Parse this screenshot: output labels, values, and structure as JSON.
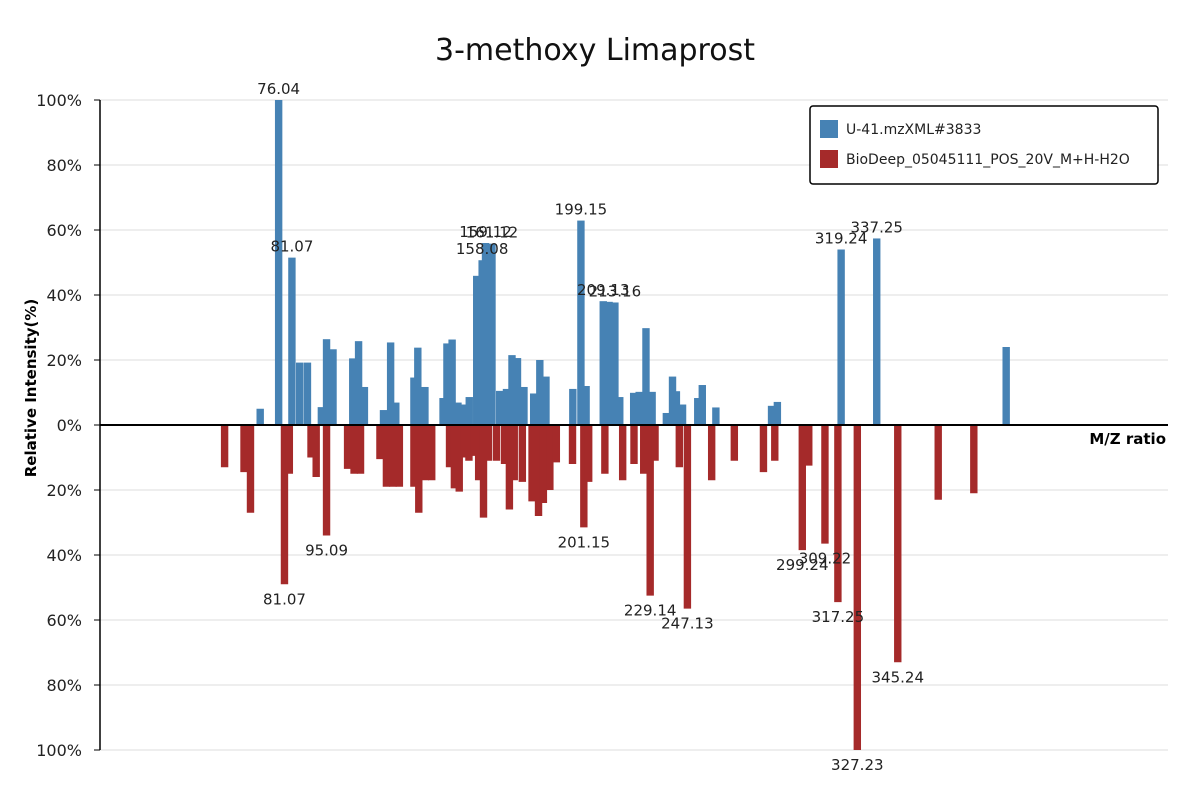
{
  "chart_data": {
    "type": "bar",
    "title": "3-methoxy Limaprost",
    "xlabel": "M/Z ratio",
    "ylabel": "Relative Intensity(%)",
    "ylim": [
      -100,
      100
    ],
    "xlim": [
      40,
      370
    ],
    "grid": true,
    "legend_position": "top-right",
    "y_tick_labels": [
      "100%",
      "80%",
      "60%",
      "40%",
      "20%",
      "0%",
      "20%",
      "40%",
      "60%",
      "80%",
      "100%"
    ],
    "series": [
      {
        "name": "U-41.mzXML#3833",
        "color": "#4682b4",
        "points": [
          [
            83.3,
            0
          ],
          [
            89.5,
            5
          ],
          [
            95.2,
            100
          ],
          [
            99.3,
            51.5
          ],
          [
            101.7,
            19.2
          ],
          [
            104.1,
            19.2
          ],
          [
            108.4,
            5.5
          ],
          [
            110.0,
            26.4
          ],
          [
            112.0,
            23.3
          ],
          [
            118.1,
            20.5
          ],
          [
            119.9,
            25.8
          ],
          [
            121.7,
            11.7
          ],
          [
            127.6,
            4.6
          ],
          [
            129.8,
            25.4
          ],
          [
            131.4,
            6.9
          ],
          [
            137.0,
            14.6
          ],
          [
            138.2,
            23.8
          ],
          [
            140.4,
            11.7
          ],
          [
            146.0,
            8.3
          ],
          [
            147.2,
            25.1
          ],
          [
            148.8,
            26.3
          ],
          [
            150.6,
            6.9
          ],
          [
            152.5,
            6.3
          ],
          [
            154.1,
            8.6
          ],
          [
            156.4,
            45.9
          ],
          [
            158.08,
            50.7
          ],
          [
            159.12,
            56.0
          ],
          [
            161.12,
            55.8
          ],
          [
            163.5,
            10.5
          ],
          [
            165.6,
            11.1
          ],
          [
            167.3,
            21.5
          ],
          [
            169.0,
            20.6
          ],
          [
            171.0,
            11.7
          ],
          [
            174.0,
            9.7
          ],
          [
            175.9,
            20.0
          ],
          [
            177.8,
            14.9
          ],
          [
            186.1,
            11.1
          ],
          [
            188.6,
            62.9
          ],
          [
            190.2,
            12.0
          ],
          [
            195.5,
            38.1
          ],
          [
            197.3,
            37.9
          ],
          [
            199.1,
            37.7
          ],
          [
            200.6,
            8.6
          ],
          [
            204.9,
            9.9
          ],
          [
            206.6,
            10.2
          ],
          [
            208.7,
            29.8
          ],
          [
            210.6,
            10.2
          ],
          [
            215.0,
            3.7
          ],
          [
            216.9,
            14.9
          ],
          [
            218.1,
            10.4
          ],
          [
            220.0,
            6.3
          ],
          [
            224.7,
            8.3
          ],
          [
            226.1,
            12.3
          ],
          [
            230.3,
            5.4
          ],
          [
            237.8,
            0
          ],
          [
            247.5,
            5.9
          ],
          [
            249.3,
            7.1
          ],
          [
            256.5,
            0
          ],
          [
            269.0,
            54.0
          ],
          [
            280.0,
            57.4
          ],
          [
            320.0,
            24.0
          ],
          [
            330.0,
            0
          ]
        ],
        "labels": [
          {
            "text": "76.04",
            "x": 95.2,
            "y": 100
          },
          {
            "text": "81.07",
            "x": 99.3,
            "y": 51.5
          },
          {
            "text": "161.12",
            "x": 161.12,
            "y": 55.8
          },
          {
            "text": "159.12",
            "x": 159.12,
            "y": 56.0
          },
          {
            "text": "158.08",
            "x": 158.08,
            "y": 50.7
          },
          {
            "text": "199.15",
            "x": 188.6,
            "y": 62.9
          },
          {
            "text": "209.13",
            "x": 195.5,
            "y": 38.1
          },
          {
            "text": "213.16",
            "x": 199.1,
            "y": 37.7
          },
          {
            "text": "319.24",
            "x": 269.0,
            "y": 54.0
          },
          {
            "text": "337.25",
            "x": 280.0,
            "y": 57.4
          }
        ]
      },
      {
        "name": "BioDeep_05045111_POS_20V_M+H-H2O",
        "color": "#a52a2a",
        "points": [
          [
            78.5,
            13
          ],
          [
            84.5,
            14.5
          ],
          [
            86.5,
            27
          ],
          [
            97.0,
            49
          ],
          [
            98.5,
            15
          ],
          [
            105.2,
            10
          ],
          [
            106.8,
            16
          ],
          [
            110.0,
            34
          ],
          [
            116.5,
            13.5
          ],
          [
            118.5,
            15
          ],
          [
            120.5,
            15
          ],
          [
            126.5,
            10.5
          ],
          [
            128.5,
            19
          ],
          [
            130.5,
            19
          ],
          [
            132.5,
            19
          ],
          [
            137.0,
            19
          ],
          [
            138.5,
            27
          ],
          [
            140.5,
            17
          ],
          [
            142.5,
            17
          ],
          [
            148.0,
            13
          ],
          [
            149.5,
            19.5
          ],
          [
            151.0,
            20.5
          ],
          [
            152.5,
            10
          ],
          [
            154.0,
            11
          ],
          [
            155.5,
            9.5
          ],
          [
            157.0,
            17
          ],
          [
            158.5,
            28.5
          ],
          [
            160.0,
            11
          ],
          [
            162.5,
            11
          ],
          [
            165.0,
            12
          ],
          [
            166.5,
            26
          ],
          [
            168.0,
            17
          ],
          [
            170.5,
            17.5
          ],
          [
            173.5,
            23.5
          ],
          [
            175.5,
            28
          ],
          [
            177.0,
            24
          ],
          [
            179.0,
            20
          ],
          [
            181.0,
            11.5
          ],
          [
            186.0,
            12
          ],
          [
            189.5,
            31.5
          ],
          [
            191.0,
            17.5
          ],
          [
            196.0,
            15
          ],
          [
            201.5,
            17
          ],
          [
            205.0,
            12
          ],
          [
            208.0,
            15
          ],
          [
            210.0,
            52.5
          ],
          [
            211.5,
            11
          ],
          [
            219.0,
            13
          ],
          [
            221.5,
            56.5
          ],
          [
            229.0,
            17
          ],
          [
            236.0,
            11
          ],
          [
            245.0,
            14.5
          ],
          [
            248.5,
            11
          ],
          [
            257.0,
            38.5
          ],
          [
            259.0,
            12.5
          ],
          [
            264.0,
            36.5
          ],
          [
            268.0,
            54.5
          ],
          [
            274.0,
            100
          ],
          [
            286.5,
            73
          ],
          [
            299.0,
            23
          ],
          [
            310.0,
            21
          ]
        ],
        "labels": [
          {
            "text": "81.07",
            "x": 97.0,
            "y": 49
          },
          {
            "text": "95.09",
            "x": 110.0,
            "y": 34
          },
          {
            "text": "201.15",
            "x": 189.5,
            "y": 31.5
          },
          {
            "text": "229.14",
            "x": 210.0,
            "y": 52.5
          },
          {
            "text": "247.13",
            "x": 221.5,
            "y": 56.5
          },
          {
            "text": "299.24",
            "x": 257.0,
            "y": 38.5
          },
          {
            "text": "309.22",
            "x": 264.0,
            "y": 36.5
          },
          {
            "text": "317.25",
            "x": 268.0,
            "y": 54.5
          },
          {
            "text": "327.23",
            "x": 274.0,
            "y": 100
          },
          {
            "text": "345.24",
            "x": 286.5,
            "y": 73
          }
        ]
      }
    ]
  }
}
